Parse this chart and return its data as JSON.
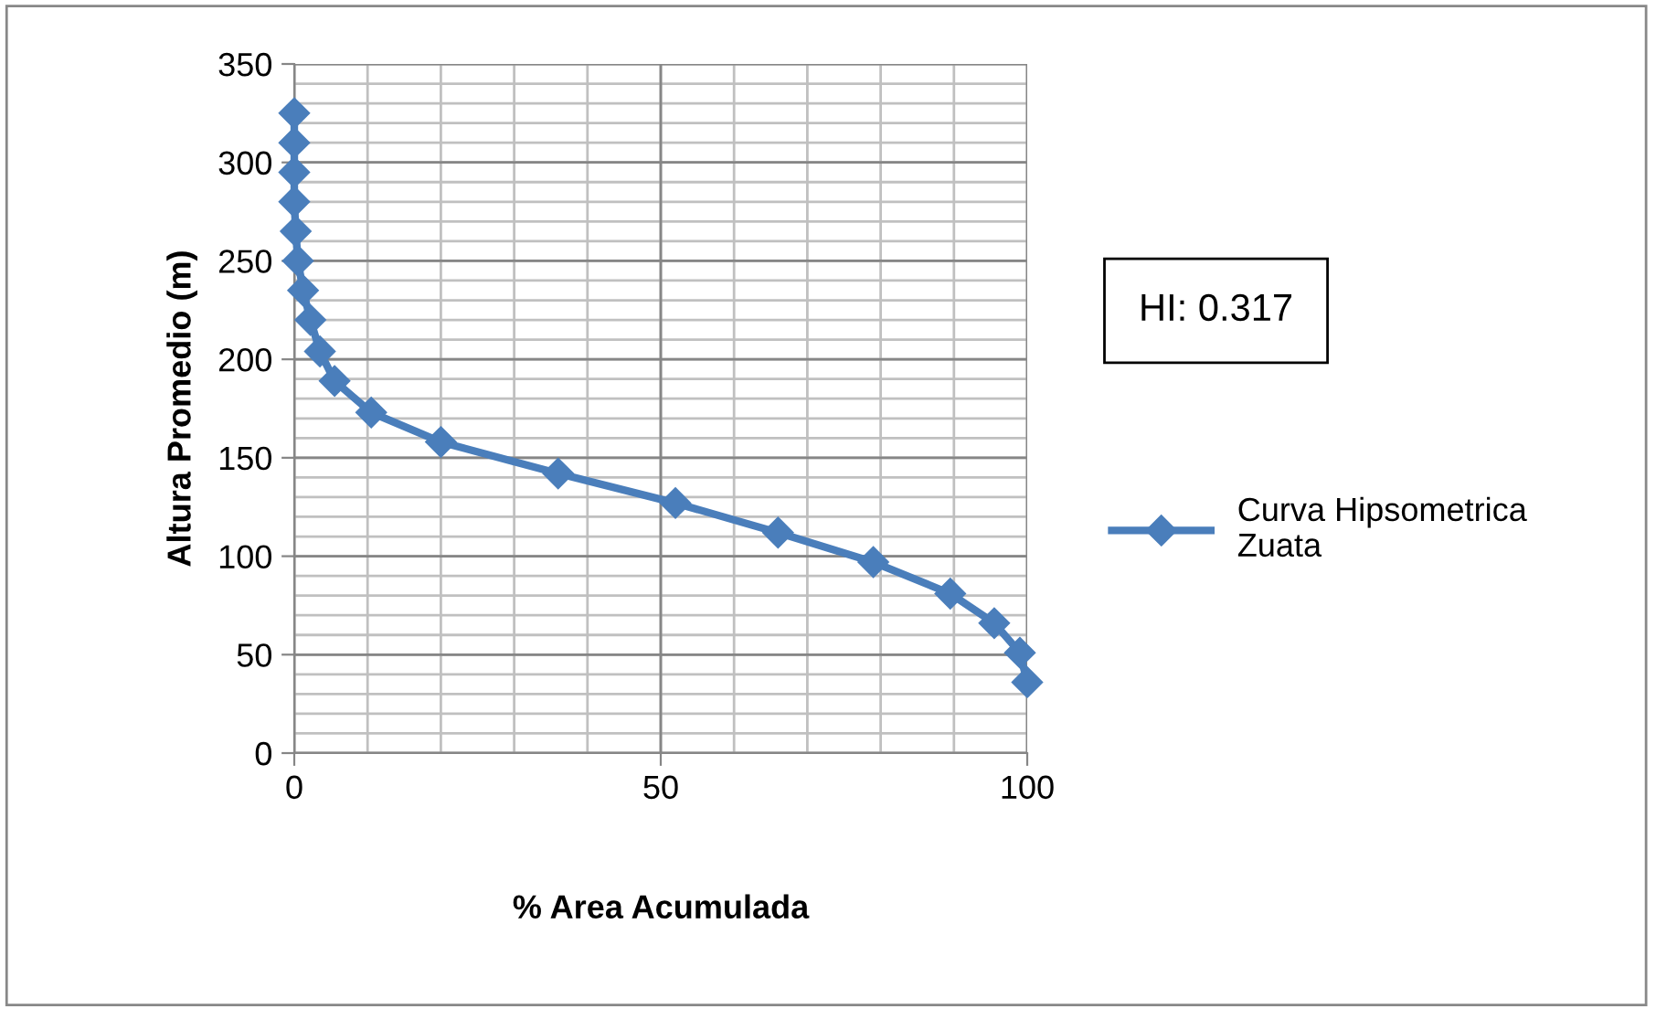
{
  "chart_data": {
    "type": "line",
    "xlabel": "% Area Acumulada",
    "ylabel": "Altura Promedio (m)",
    "annotations": [
      "HI: 0.317"
    ],
    "xlim": [
      0,
      100
    ],
    "xticks": [
      0,
      50,
      100
    ],
    "ylim": [
      0,
      350
    ],
    "yticks": [
      0,
      50,
      100,
      150,
      200,
      250,
      300,
      350
    ],
    "grid": true,
    "legend": "right",
    "marker": "diamond",
    "line_style": "solid",
    "series": [
      {
        "name": "Curva Hipsometrica\nZuata",
        "color": "#4a7ebb",
        "x": [
          0,
          0,
          0,
          0,
          0.2,
          0.5,
          1.2,
          2.2,
          3.5,
          5.5,
          10.5,
          20,
          36,
          52,
          66,
          79,
          89.5,
          95.5,
          99,
          100
        ],
        "values": [
          325,
          310,
          295,
          280,
          265,
          250,
          235,
          220,
          204,
          189,
          173,
          158,
          142,
          127,
          112,
          97,
          81,
          66,
          51,
          36
        ]
      }
    ]
  }
}
